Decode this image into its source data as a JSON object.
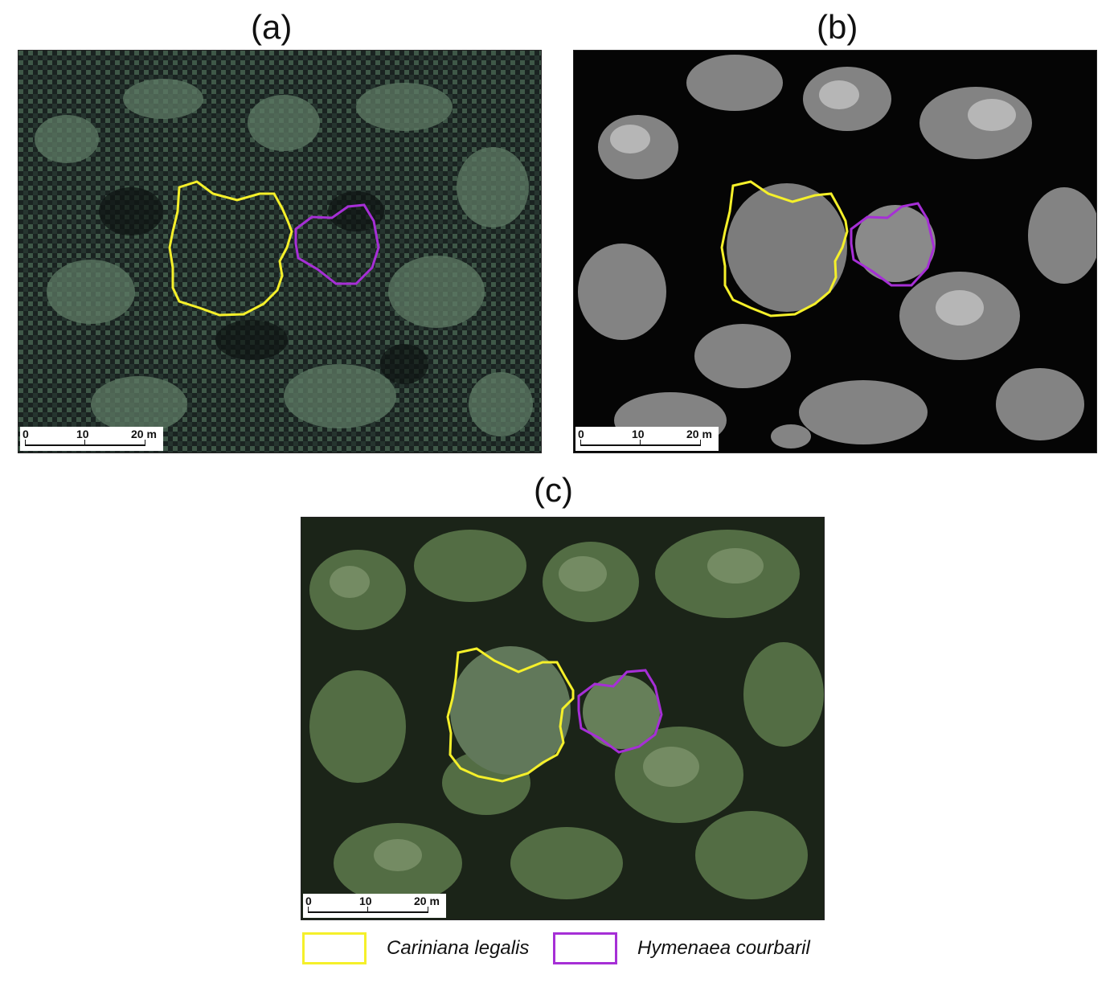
{
  "panels": [
    {
      "label": "(a)",
      "style": "low-resolution multispectral"
    },
    {
      "label": "(b)",
      "style": "high-resolution panchromatic"
    },
    {
      "label": "(c)",
      "style": "high-resolution RGB"
    }
  ],
  "scalebar": {
    "ticks": [
      "0",
      "10",
      "20 m"
    ]
  },
  "legend": [
    {
      "label": "Cariniana legalis",
      "color": "#f5f02a"
    },
    {
      "label": "Hymenaea courbaril",
      "color": "#a62fd6"
    }
  ],
  "colors": {
    "yellow_outline": "#f5f02a",
    "purple_outline": "#a62fd6"
  }
}
